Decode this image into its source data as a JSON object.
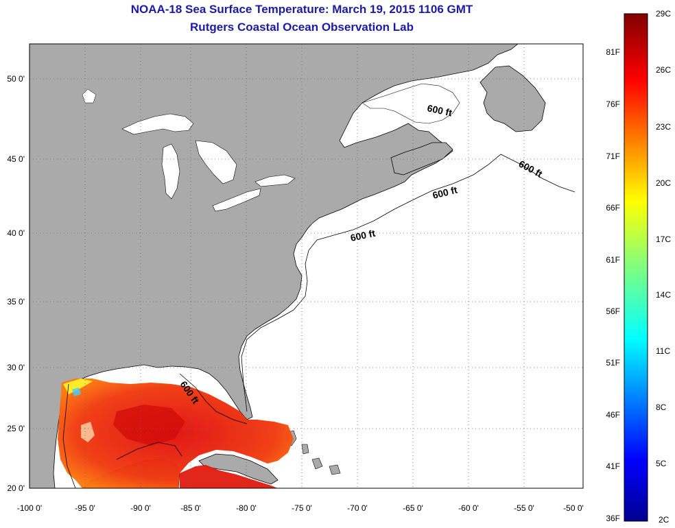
{
  "title": "NOAA-18 Sea Surface Temperature:  March 19, 2015 1106 GMT",
  "subtitle": "Rutgers Coastal Ocean Observation Lab",
  "colors": {
    "land": "#aaaaaa",
    "ocean": "#ffffff",
    "title": "#1a1aa6"
  },
  "map": {
    "lon_range": [
      -100,
      -50
    ],
    "lat_range": [
      20,
      52
    ]
  },
  "x_ticks": [
    "-100 0'",
    "-95 0'",
    "-90 0'",
    "-85 0'",
    "-80 0'",
    "-75 0'",
    "-70 0'",
    "-65 0'",
    "-60 0'",
    "-55 0'",
    "-50 0'"
  ],
  "y_ticks": [
    "50 0'",
    "45 0'",
    "40 0'",
    "35 0'",
    "30 0'",
    "25 0'",
    "20 0'"
  ],
  "contour_labels": [
    "600 ft",
    "600 ft",
    "600 ft",
    "600 ft",
    "600 ft"
  ],
  "colorbar": {
    "celsius": [
      "29C",
      "26C",
      "23C",
      "20C",
      "17C",
      "14C",
      "11C",
      "8C",
      "5C",
      "2C"
    ],
    "fahrenheit": [
      "81F",
      "76F",
      "71F",
      "66F",
      "61F",
      "56F",
      "51F",
      "46F",
      "41F",
      "36F"
    ]
  }
}
